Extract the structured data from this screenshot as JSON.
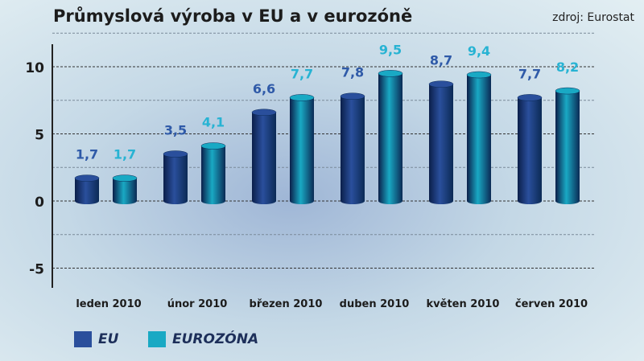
{
  "title": "Průmyslová výroba v EU a v eurozóně",
  "source": "zdroj: Eurostat",
  "chart_data": {
    "type": "bar",
    "title": "Průmyslová výroba v EU a v eurozóně",
    "categories": [
      "leden 2010",
      "únor 2010",
      "březen 2010",
      "duben 2010",
      "květen 2010",
      "červen 2010"
    ],
    "series": [
      {
        "name": "EU",
        "values": [
          1.7,
          3.5,
          6.6,
          7.8,
          8.7,
          7.7
        ],
        "color": "#2a4f9c",
        "label_color": "#2f5aa8"
      },
      {
        "name": "EUROZÓNA",
        "values": [
          1.7,
          4.1,
          7.7,
          9.5,
          9.4,
          8.2
        ],
        "color": "#19a9c4",
        "label_color": "#27b3d3"
      }
    ],
    "value_labels": [
      [
        "1,7",
        "3,5",
        "6,6",
        "7,8",
        "8,7",
        "7,7"
      ],
      [
        "1,7",
        "4,1",
        "7,7",
        "9,5",
        "9,4",
        "8,2"
      ]
    ],
    "yticks": [
      10,
      5,
      0,
      -5
    ],
    "ytick_labels": [
      "10",
      "5",
      "0",
      "-5"
    ],
    "ylim": [
      -6.5,
      12
    ],
    "grid": true,
    "legend": "bottom-left"
  }
}
